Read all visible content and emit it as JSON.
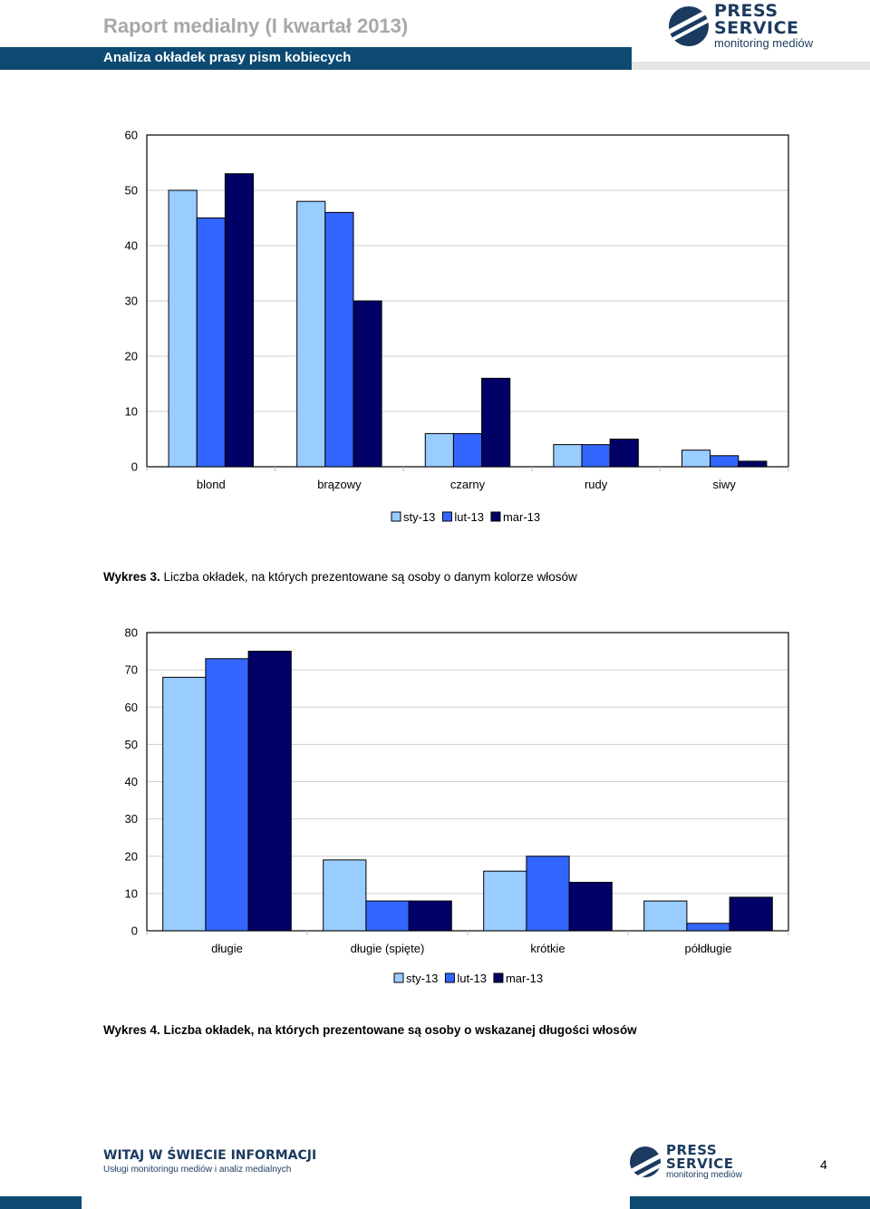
{
  "header": {
    "title": "Raport medialny (I kwartał 2013)",
    "subtitle": "Analiza okładek prasy pism kobiecych"
  },
  "logo": {
    "line1": "PRESS",
    "line2": "SERVICE",
    "line3": "monitoring mediów",
    "icon": "press-service-globe-icon",
    "color": "#1b3a5f"
  },
  "colors": {
    "sty-13": "#99ccff",
    "lut-13": "#3366ff",
    "mar-13": "#000066",
    "header_bar": "#0c4a72"
  },
  "chart_data": [
    {
      "type": "bar",
      "categories": [
        "blond",
        "brązowy",
        "czarny",
        "rudy",
        "siwy"
      ],
      "series": [
        {
          "name": "sty-13",
          "values": [
            50,
            48,
            6,
            4,
            3
          ]
        },
        {
          "name": "lut-13",
          "values": [
            45,
            46,
            6,
            4,
            2
          ]
        },
        {
          "name": "mar-13",
          "values": [
            53,
            30,
            16,
            5,
            1
          ]
        }
      ],
      "ylim": [
        0,
        60
      ],
      "yticks": [
        0,
        10,
        20,
        30,
        40,
        50,
        60
      ],
      "grid": true,
      "legend": "bottom"
    },
    {
      "type": "bar",
      "categories": [
        "długie",
        "długie (spięte)",
        "krótkie",
        "półdługie"
      ],
      "series": [
        {
          "name": "sty-13",
          "values": [
            68,
            19,
            16,
            8
          ]
        },
        {
          "name": "lut-13",
          "values": [
            73,
            8,
            20,
            2
          ]
        },
        {
          "name": "mar-13",
          "values": [
            75,
            8,
            13,
            9
          ]
        }
      ],
      "ylim": [
        0,
        80
      ],
      "yticks": [
        0,
        10,
        20,
        30,
        40,
        50,
        60,
        70,
        80
      ],
      "grid": true,
      "legend": "bottom"
    }
  ],
  "captions": {
    "chart1_prefix": "Wykres 3.",
    "chart1_text": " Liczba okładek, na których prezentowane są osoby o danym kolorze włosów",
    "chart2": "Wykres 4. Liczba okładek, na których prezentowane są osoby o wskazanej długości włosów"
  },
  "footer": {
    "slogan": "WITAJ W ŚWIECIE INFORMACJI",
    "tagline": "Usługi monitoringu mediów i analiz medialnych",
    "page_number": "4"
  }
}
